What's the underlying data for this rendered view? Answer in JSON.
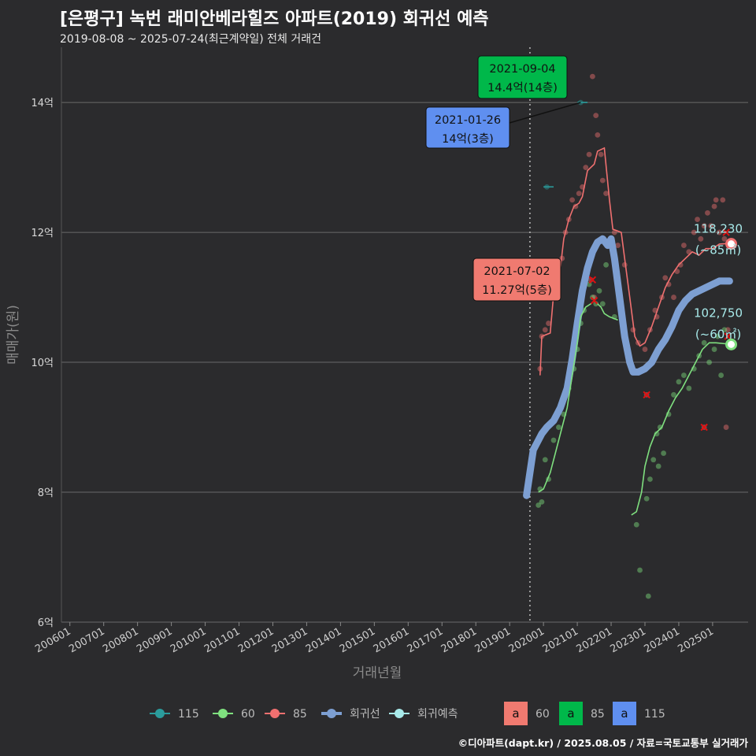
{
  "title": "[은평구] 녹번 래미안베라힐즈 아파트(2019) 회귀선 예측",
  "subtitle": "2019-08-08 ~ 2025-07-24(최근계약일) 전체 거래건",
  "caption": "©디아파트(dapt.kr) / 2025.08.05 / 자료=국토교통부 실거래가",
  "chart_data": {
    "type": "scatter",
    "xlabel": "거래년월",
    "ylabel": "매매가(원)",
    "x_range": [
      2005.75,
      2026.05
    ],
    "ylim": [
      6,
      14.85
    ],
    "y_ticks": [
      {
        "v": 6,
        "label": "6억"
      },
      {
        "v": 8,
        "label": "8억"
      },
      {
        "v": 10,
        "label": "10억"
      },
      {
        "v": 12,
        "label": "12억"
      },
      {
        "v": 14,
        "label": "14억"
      }
    ],
    "x_ticks": [
      {
        "v": 2006,
        "label": "200601"
      },
      {
        "v": 2007,
        "label": "200701"
      },
      {
        "v": 2008,
        "label": "200801"
      },
      {
        "v": 2009,
        "label": "200901"
      },
      {
        "v": 2010,
        "label": "201001"
      },
      {
        "v": 2011,
        "label": "201101"
      },
      {
        "v": 2012,
        "label": "201201"
      },
      {
        "v": 2013,
        "label": "201301"
      },
      {
        "v": 2014,
        "label": "201401"
      },
      {
        "v": 2015,
        "label": "201501"
      },
      {
        "v": 2016,
        "label": "201601"
      },
      {
        "v": 2017,
        "label": "201701"
      },
      {
        "v": 2018,
        "label": "201801"
      },
      {
        "v": 2019,
        "label": "201901"
      },
      {
        "v": 2020,
        "label": "202001"
      },
      {
        "v": 2021,
        "label": "202101"
      },
      {
        "v": 2022,
        "label": "202201"
      },
      {
        "v": 2023,
        "label": "202301"
      },
      {
        "v": 2024,
        "label": "202401"
      },
      {
        "v": 2025,
        "label": "202501"
      }
    ],
    "vline_x": 2019.6,
    "colors": {
      "s115": "#2b9c9c",
      "s60": "#7fe07f",
      "s85": "#f07070",
      "regression": "#7d9fd2",
      "forecast": "#a8eaea"
    },
    "series": [
      {
        "name": "85",
        "line": [
          [
            2019.9,
            9.8
          ],
          [
            2019.95,
            10.4
          ],
          [
            2020.2,
            10.45
          ],
          [
            2020.3,
            11.05
          ],
          [
            2020.5,
            11.45
          ],
          [
            2020.6,
            11.9
          ],
          [
            2020.75,
            12.2
          ],
          [
            2020.9,
            12.4
          ],
          [
            2021.05,
            12.45
          ],
          [
            2021.15,
            12.55
          ],
          [
            2021.3,
            12.95
          ],
          [
            2021.5,
            13.05
          ],
          [
            2021.6,
            13.25
          ],
          [
            2021.8,
            13.3
          ],
          [
            2021.95,
            12.5
          ],
          [
            2022.05,
            12.05
          ],
          [
            2022.3,
            12.0
          ],
          [
            2022.4,
            11.6
          ],
          [
            2022.55,
            11.0
          ],
          [
            2022.7,
            10.4
          ],
          [
            2022.85,
            10.25
          ],
          [
            2023.0,
            10.3
          ],
          [
            2023.2,
            10.55
          ],
          [
            2023.4,
            10.85
          ],
          [
            2023.6,
            11.15
          ],
          [
            2023.8,
            11.35
          ],
          [
            2024.0,
            11.5
          ],
          [
            2024.2,
            11.6
          ],
          [
            2024.4,
            11.7
          ],
          [
            2024.6,
            11.65
          ],
          [
            2024.8,
            11.75
          ],
          [
            2025.0,
            11.75
          ],
          [
            2025.2,
            11.82
          ],
          [
            2025.5,
            11.83
          ]
        ],
        "points": [
          [
            2019.9,
            9.9
          ],
          [
            2019.95,
            10.4
          ],
          [
            2020.05,
            10.5
          ],
          [
            2020.15,
            10.6
          ],
          [
            2020.25,
            11.0
          ],
          [
            2020.35,
            11.1
          ],
          [
            2020.45,
            11.5
          ],
          [
            2020.55,
            11.6
          ],
          [
            2020.65,
            12.0
          ],
          [
            2020.75,
            12.2
          ],
          [
            2020.85,
            12.5
          ],
          [
            2020.95,
            12.4
          ],
          [
            2021.05,
            12.6
          ],
          [
            2021.15,
            12.7
          ],
          [
            2021.25,
            13.0
          ],
          [
            2021.35,
            13.2
          ],
          [
            2021.45,
            14.4
          ],
          [
            2021.55,
            13.8
          ],
          [
            2021.6,
            13.5
          ],
          [
            2021.7,
            13.2
          ],
          [
            2021.75,
            12.8
          ],
          [
            2021.85,
            12.6
          ],
          [
            2021.4,
            11.27
          ],
          [
            2021.5,
            11.0
          ],
          [
            2022.1,
            12.0
          ],
          [
            2022.2,
            11.8
          ],
          [
            2022.4,
            11.5
          ],
          [
            2022.65,
            10.5
          ],
          [
            2022.8,
            10.3
          ],
          [
            2023.0,
            10.2
          ],
          [
            2023.05,
            9.5
          ],
          [
            2023.15,
            10.5
          ],
          [
            2023.3,
            10.8
          ],
          [
            2023.35,
            10.7
          ],
          [
            2023.5,
            11.0
          ],
          [
            2023.6,
            11.3
          ],
          [
            2023.7,
            11.2
          ],
          [
            2023.85,
            11.0
          ],
          [
            2023.95,
            11.4
          ],
          [
            2024.05,
            11.5
          ],
          [
            2024.15,
            11.8
          ],
          [
            2024.3,
            11.7
          ],
          [
            2024.45,
            12.0
          ],
          [
            2024.55,
            12.2
          ],
          [
            2024.65,
            11.9
          ],
          [
            2024.75,
            12.1
          ],
          [
            2024.85,
            12.3
          ],
          [
            2024.95,
            12.1
          ],
          [
            2025.05,
            12.4
          ],
          [
            2025.1,
            12.5
          ],
          [
            2025.2,
            12.0
          ],
          [
            2025.3,
            12.5
          ],
          [
            2025.35,
            11.9
          ],
          [
            2025.45,
            10.5
          ],
          [
            2025.4,
            9.0
          ],
          [
            2024.75,
            9.0
          ]
        ]
      },
      {
        "name": "60",
        "line": [
          [
            2019.85,
            8.0
          ],
          [
            2020.0,
            8.05
          ],
          [
            2020.2,
            8.3
          ],
          [
            2020.35,
            8.6
          ],
          [
            2020.5,
            8.9
          ],
          [
            2020.7,
            9.3
          ],
          [
            2020.85,
            9.8
          ],
          [
            2021.0,
            10.3
          ],
          [
            2021.1,
            10.7
          ],
          [
            2021.25,
            10.85
          ],
          [
            2021.4,
            10.9
          ],
          [
            2021.5,
            10.95
          ],
          [
            2021.7,
            10.85
          ],
          [
            2021.8,
            10.75
          ],
          [
            2021.95,
            10.7
          ],
          [
            2022.2,
            10.65
          ],
          [
            2022.6,
            7.65
          ],
          [
            2022.75,
            7.7
          ],
          [
            2022.9,
            8.0
          ],
          [
            2023.0,
            8.4
          ],
          [
            2023.15,
            8.7
          ],
          [
            2023.3,
            8.9
          ],
          [
            2023.5,
            9.0
          ],
          [
            2023.7,
            9.25
          ],
          [
            2023.9,
            9.45
          ],
          [
            2024.1,
            9.6
          ],
          [
            2024.3,
            9.8
          ],
          [
            2024.5,
            10.0
          ],
          [
            2024.7,
            10.2
          ],
          [
            2024.9,
            10.3
          ],
          [
            2025.1,
            10.3
          ],
          [
            2025.5,
            10.28
          ]
        ],
        "points": [
          [
            2019.85,
            7.8
          ],
          [
            2019.9,
            8.05
          ],
          [
            2019.95,
            7.85
          ],
          [
            2020.05,
            8.5
          ],
          [
            2020.15,
            8.2
          ],
          [
            2020.3,
            8.8
          ],
          [
            2020.45,
            9.0
          ],
          [
            2020.6,
            9.2
          ],
          [
            2020.75,
            9.6
          ],
          [
            2020.9,
            9.9
          ],
          [
            2021.0,
            10.2
          ],
          [
            2021.1,
            10.6
          ],
          [
            2021.2,
            10.8
          ],
          [
            2021.35,
            11.2
          ],
          [
            2021.45,
            11.0
          ],
          [
            2021.55,
            10.9
          ],
          [
            2021.65,
            11.1
          ],
          [
            2021.75,
            10.9
          ],
          [
            2021.85,
            11.5
          ],
          [
            2022.1,
            10.7
          ],
          [
            2022.75,
            7.5
          ],
          [
            2022.85,
            6.8
          ],
          [
            2023.05,
            7.9
          ],
          [
            2023.15,
            8.2
          ],
          [
            2023.25,
            8.5
          ],
          [
            2023.35,
            8.9
          ],
          [
            2023.45,
            9.0
          ],
          [
            2023.55,
            8.6
          ],
          [
            2023.7,
            9.2
          ],
          [
            2023.85,
            9.5
          ],
          [
            2024.0,
            9.7
          ],
          [
            2024.15,
            9.8
          ],
          [
            2024.3,
            9.6
          ],
          [
            2024.45,
            9.9
          ],
          [
            2024.6,
            10.1
          ],
          [
            2024.75,
            10.3
          ],
          [
            2024.9,
            10.0
          ],
          [
            2025.05,
            10.2
          ],
          [
            2025.15,
            10.4
          ],
          [
            2025.25,
            9.8
          ],
          [
            2025.35,
            10.5
          ],
          [
            2023.1,
            6.4
          ],
          [
            2023.4,
            8.4
          ]
        ]
      },
      {
        "name": "115",
        "line": [
          [
            2020.0,
            12.7
          ],
          [
            2020.3,
            12.7
          ],
          [
            2021.0,
            14.0
          ],
          [
            2021.3,
            14.0
          ]
        ],
        "points": [
          [
            2020.1,
            12.7
          ],
          [
            2021.1,
            14.0
          ]
        ]
      }
    ],
    "regression": [
      [
        2019.5,
        7.95
      ],
      [
        2019.6,
        8.3
      ],
      [
        2019.7,
        8.65
      ],
      [
        2019.8,
        8.75
      ],
      [
        2019.95,
        8.9
      ],
      [
        2020.1,
        9.0
      ],
      [
        2020.3,
        9.1
      ],
      [
        2020.5,
        9.3
      ],
      [
        2020.7,
        9.6
      ],
      [
        2020.85,
        10.05
      ],
      [
        2021.0,
        10.6
      ],
      [
        2021.15,
        11.1
      ],
      [
        2021.3,
        11.45
      ],
      [
        2021.45,
        11.7
      ],
      [
        2021.6,
        11.85
      ],
      [
        2021.75,
        11.9
      ],
      [
        2021.9,
        11.8
      ],
      [
        2022.0,
        11.9
      ],
      [
        2022.1,
        11.6
      ],
      [
        2022.25,
        11.0
      ],
      [
        2022.4,
        10.4
      ],
      [
        2022.55,
        10.0
      ],
      [
        2022.65,
        9.85
      ],
      [
        2022.8,
        9.85
      ],
      [
        2023.0,
        9.9
      ],
      [
        2023.2,
        10.0
      ],
      [
        2023.4,
        10.2
      ],
      [
        2023.6,
        10.35
      ],
      [
        2023.8,
        10.55
      ],
      [
        2024.0,
        10.8
      ],
      [
        2024.2,
        10.95
      ],
      [
        2024.4,
        11.05
      ],
      [
        2024.6,
        11.1
      ],
      [
        2024.8,
        11.15
      ],
      [
        2025.0,
        11.2
      ],
      [
        2025.2,
        11.25
      ],
      [
        2025.5,
        11.25
      ]
    ],
    "forecast_points": [
      {
        "series": "85",
        "x": 2025.55,
        "y": 11.823
      },
      {
        "series": "60",
        "x": 2025.55,
        "y": 10.275
      }
    ],
    "markers_x": [
      [
        2023.05,
        9.5
      ],
      [
        2024.75,
        9.0
      ],
      [
        2025.4,
        12.0
      ],
      [
        2025.45,
        10.4
      ],
      [
        2021.5,
        10.95
      ],
      [
        2021.45,
        11.27
      ]
    ],
    "annotations": [
      {
        "id": "ann-85",
        "date": "2021-09-04",
        "text": "14.4억(14층)",
        "bg": "#00b84a",
        "x": 2021.45,
        "y": 14.4
      },
      {
        "id": "ann-115",
        "date": "2021-01-26",
        "text": "14억(3층)",
        "bg": "#5f8ff0",
        "x": 2021.1,
        "y": 14.0
      },
      {
        "id": "ann-60",
        "date": "2021-07-02",
        "text": "11.27억(5층)",
        "bg": "#f07a70",
        "x": 2021.45,
        "y": 11.27
      }
    ],
    "forecast_labels": [
      {
        "value": "118,230",
        "area": "(~85㎡)"
      },
      {
        "value": "102,750",
        "area": "(~60㎡)"
      }
    ],
    "legend": {
      "lines": [
        {
          "label": "115",
          "color": "#2b9c9c"
        },
        {
          "label": "60",
          "color": "#7fe07f"
        },
        {
          "label": "85",
          "color": "#f07070"
        },
        {
          "label": "회귀선",
          "color": "#7d9fd2"
        },
        {
          "label": "회귀예측",
          "color": "#a8eaea"
        }
      ],
      "boxes": [
        {
          "letter": "a",
          "label": "60",
          "color": "#f07a70"
        },
        {
          "letter": "a",
          "label": "85",
          "color": "#00b84a"
        },
        {
          "letter": "a",
          "label": "115",
          "color": "#5f8ff0"
        }
      ]
    }
  }
}
